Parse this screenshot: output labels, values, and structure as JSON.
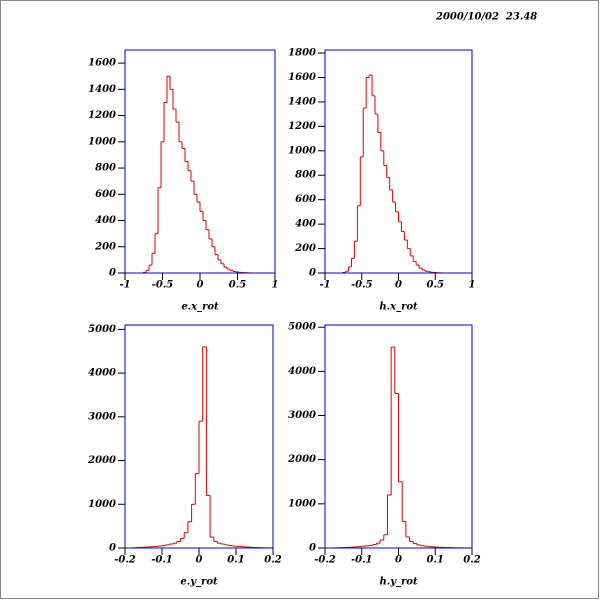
{
  "timestamp": "2000/10/02  23.48",
  "chart_data": [
    {
      "type": "histogram",
      "xlabel": "e.x_rot",
      "color": "#dd0000",
      "bins": [
        -0.8,
        -0.76,
        -0.72,
        -0.68,
        -0.64,
        -0.6,
        -0.56,
        -0.52,
        -0.48,
        -0.44,
        -0.4,
        -0.36,
        -0.32,
        -0.28,
        -0.24,
        -0.2,
        -0.16,
        -0.12,
        -0.08,
        -0.04,
        0,
        0.04,
        0.08,
        0.12,
        0.16,
        0.2,
        0.24,
        0.28,
        0.32,
        0.36,
        0.4,
        0.44,
        0.48,
        0.52,
        0.56,
        0.6,
        0.64,
        0.68,
        0.72,
        0.76,
        0.8
      ],
      "values": [
        0,
        5,
        20,
        60,
        150,
        300,
        650,
        1000,
        1300,
        1500,
        1400,
        1250,
        1150,
        1000,
        950,
        850,
        780,
        700,
        600,
        540,
        470,
        400,
        330,
        260,
        200,
        140,
        100,
        70,
        45,
        30,
        20,
        12,
        8,
        5,
        3,
        2,
        1,
        0,
        0,
        0
      ],
      "xlim": [
        -1,
        1
      ],
      "xticks": [
        -1,
        -0.5,
        0,
        0.5,
        1
      ],
      "ylim": [
        0,
        1700
      ],
      "yticks": [
        0,
        200,
        400,
        600,
        800,
        1000,
        1200,
        1400,
        1600
      ]
    },
    {
      "type": "histogram",
      "xlabel": "h.x_rot",
      "color": "#dd0000",
      "bins": [
        -0.8,
        -0.76,
        -0.72,
        -0.68,
        -0.64,
        -0.6,
        -0.56,
        -0.52,
        -0.48,
        -0.44,
        -0.4,
        -0.36,
        -0.32,
        -0.28,
        -0.24,
        -0.2,
        -0.16,
        -0.12,
        -0.08,
        -0.04,
        0,
        0.04,
        0.08,
        0.12,
        0.16,
        0.2,
        0.24,
        0.28,
        0.32,
        0.36,
        0.4,
        0.44,
        0.48,
        0.52,
        0.56,
        0.6,
        0.64,
        0.68,
        0.72,
        0.76,
        0.8
      ],
      "values": [
        0,
        5,
        15,
        50,
        120,
        260,
        550,
        950,
        1350,
        1600,
        1620,
        1450,
        1300,
        1150,
        1000,
        880,
        780,
        680,
        580,
        500,
        420,
        340,
        270,
        200,
        140,
        95,
        65,
        40,
        25,
        15,
        10,
        6,
        4,
        2,
        1,
        0,
        0,
        0,
        0,
        0
      ],
      "xlim": [
        -1,
        1
      ],
      "xticks": [
        -1,
        -0.5,
        0,
        0.5,
        1
      ],
      "ylim": [
        0,
        1825
      ],
      "yticks": [
        0,
        200,
        400,
        600,
        800,
        1000,
        1200,
        1400,
        1600,
        1800
      ]
    },
    {
      "type": "histogram",
      "xlabel": "e.y_rot",
      "color": "#dd0000",
      "bins": [
        -0.2,
        -0.19,
        -0.18,
        -0.17,
        -0.16,
        -0.15,
        -0.14,
        -0.13,
        -0.12,
        -0.11,
        -0.1,
        -0.09,
        -0.08,
        -0.07,
        -0.06,
        -0.05,
        -0.04,
        -0.03,
        -0.02,
        -0.01,
        0,
        0.01,
        0.02,
        0.03,
        0.04,
        0.05,
        0.06,
        0.07,
        0.08,
        0.09,
        0.1,
        0.11,
        0.12,
        0.13,
        0.14,
        0.15,
        0.16,
        0.17,
        0.18,
        0.19,
        0.2
      ],
      "values": [
        0,
        0,
        5,
        10,
        15,
        20,
        25,
        30,
        35,
        45,
        55,
        70,
        90,
        110,
        150,
        220,
        350,
        600,
        1000,
        1700,
        2900,
        4600,
        1200,
        250,
        150,
        110,
        90,
        70,
        55,
        45,
        35,
        30,
        25,
        20,
        15,
        10,
        8,
        5,
        3,
        2
      ],
      "xlim": [
        -0.2,
        0.2
      ],
      "xticks": [
        -0.2,
        -0.1,
        0,
        0.1,
        0.2
      ],
      "ylim": [
        0,
        5100
      ],
      "yticks": [
        0,
        1000,
        2000,
        3000,
        4000,
        5000
      ]
    },
    {
      "type": "histogram",
      "xlabel": "h.y_rot",
      "color": "#dd0000",
      "bins": [
        -0.2,
        -0.19,
        -0.18,
        -0.17,
        -0.16,
        -0.15,
        -0.14,
        -0.13,
        -0.12,
        -0.11,
        -0.1,
        -0.09,
        -0.08,
        -0.07,
        -0.06,
        -0.05,
        -0.04,
        -0.03,
        -0.02,
        -0.01,
        0,
        0.01,
        0.02,
        0.03,
        0.04,
        0.05,
        0.06,
        0.07,
        0.08,
        0.09,
        0.1,
        0.11,
        0.12,
        0.13,
        0.14,
        0.15,
        0.16,
        0.17,
        0.18,
        0.19,
        0.2
      ],
      "values": [
        0,
        0,
        3,
        5,
        8,
        12,
        15,
        20,
        25,
        30,
        40,
        50,
        60,
        80,
        110,
        180,
        300,
        1200,
        4550,
        3500,
        1500,
        600,
        250,
        150,
        100,
        70,
        50,
        40,
        30,
        25,
        20,
        15,
        12,
        10,
        8,
        5,
        4,
        3,
        2,
        1
      ],
      "xlim": [
        -0.2,
        0.2
      ],
      "xticks": [
        -0.2,
        -0.1,
        0,
        0.1,
        0.2
      ],
      "ylim": [
        0,
        5050
      ],
      "yticks": [
        0,
        1000,
        2000,
        3000,
        4000,
        5000
      ]
    }
  ]
}
